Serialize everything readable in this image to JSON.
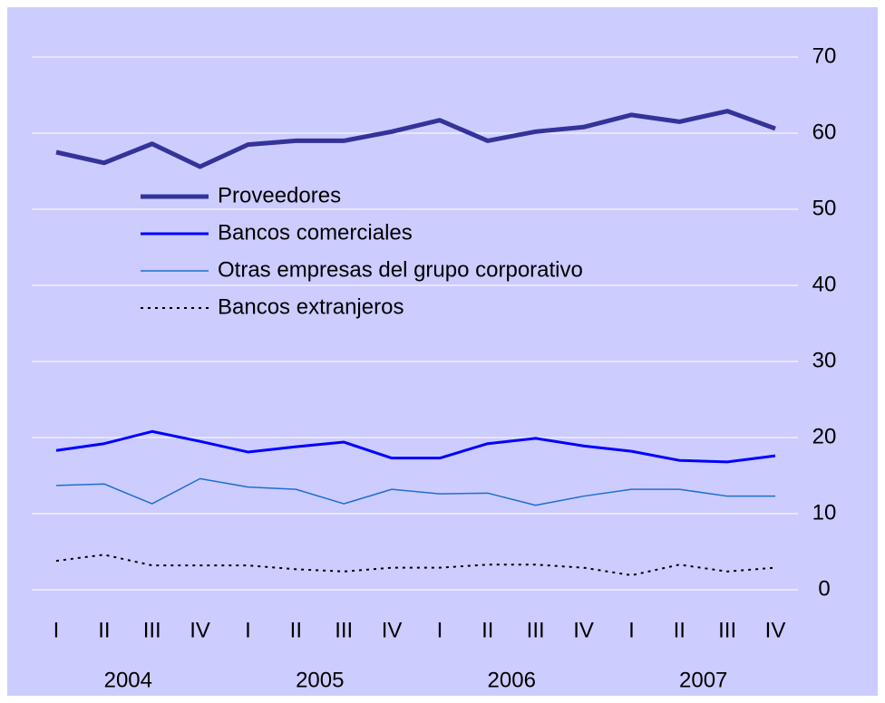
{
  "chart_data": {
    "type": "line",
    "categories": [
      "I",
      "II",
      "III",
      "IV",
      "I",
      "II",
      "III",
      "IV",
      "I",
      "II",
      "III",
      "IV",
      "I",
      "II",
      "III",
      "IV"
    ],
    "year_labels": [
      "2004",
      "2005",
      "2006",
      "2007"
    ],
    "ylim": [
      0,
      70
    ],
    "yticks": [
      0,
      10,
      20,
      30,
      40,
      50,
      60,
      70
    ],
    "grid": true,
    "y_axis_side": "right",
    "legend_position": "upper left",
    "series": [
      {
        "name": "Proveedores",
        "color": "#333399",
        "line_width": 5,
        "dash": "solid",
        "values": [
          57.5,
          56.1,
          58.6,
          55.6,
          58.5,
          59.0,
          59.0,
          60.2,
          61.7,
          59.0,
          60.2,
          60.8,
          62.4,
          61.5,
          62.9,
          60.6
        ]
      },
      {
        "name": "Bancos comerciales",
        "color": "#0000ff",
        "line_width": 3,
        "dash": "solid",
        "values": [
          18.3,
          19.2,
          20.8,
          19.5,
          18.1,
          18.8,
          19.4,
          17.3,
          17.3,
          19.2,
          19.9,
          18.9,
          18.2,
          17.0,
          16.8,
          17.6
        ]
      },
      {
        "name": "Otras empresas del grupo corporativo",
        "color": "#1e6fd0",
        "line_width": 1.5,
        "dash": "solid",
        "values": [
          13.7,
          13.9,
          11.3,
          14.6,
          13.5,
          13.2,
          11.3,
          13.2,
          12.6,
          12.7,
          11.1,
          12.3,
          13.2,
          13.2,
          12.3,
          12.3
        ]
      },
      {
        "name": "Bancos extranjeros",
        "color": "#000000",
        "line_width": 2,
        "dash": "dotted",
        "values": [
          3.8,
          4.6,
          3.2,
          3.2,
          3.2,
          2.7,
          2.4,
          2.9,
          2.9,
          3.3,
          3.3,
          2.9,
          1.9,
          3.3,
          2.4,
          2.9
        ]
      }
    ]
  }
}
